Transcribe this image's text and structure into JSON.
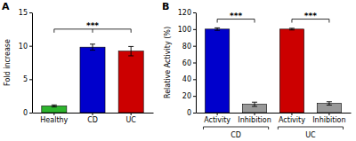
{
  "chart_data": [
    {
      "type": "bar",
      "title": "A",
      "categories": [
        "Healthy",
        "CD",
        "UC"
      ],
      "values": [
        1.0,
        9.8,
        9.2
      ],
      "errors": [
        0.15,
        0.45,
        0.7
      ],
      "colors": [
        "#2db52d",
        "#0000cc",
        "#cc0000"
      ],
      "ylabel": "Fold increase",
      "ylim": [
        0,
        15
      ],
      "yticks": [
        0,
        5,
        10,
        15
      ],
      "annotations": [
        {
          "text": "***",
          "x1": 0,
          "x2": 2,
          "y": 12.5
        }
      ]
    },
    {
      "type": "bar",
      "title": "B",
      "categories": [
        "Activity",
        "Inhibition",
        "Activity",
        "Inhibition"
      ],
      "group_labels": [
        "CD",
        "UC"
      ],
      "values": [
        100,
        10,
        100,
        11
      ],
      "errors": [
        1.5,
        2.5,
        1.0,
        2.0
      ],
      "colors": [
        "#0000cc",
        "#999999",
        "#cc0000",
        "#999999"
      ],
      "ylabel": "Relative Activity (%)",
      "ylim": [
        0,
        120
      ],
      "yticks": [
        0,
        20,
        40,
        60,
        80,
        100,
        120
      ],
      "annotations": [
        {
          "text": "***",
          "x1": 0,
          "x2": 1,
          "y": 112
        },
        {
          "text": "***",
          "x1": 2,
          "x2": 3,
          "y": 112
        }
      ]
    }
  ]
}
